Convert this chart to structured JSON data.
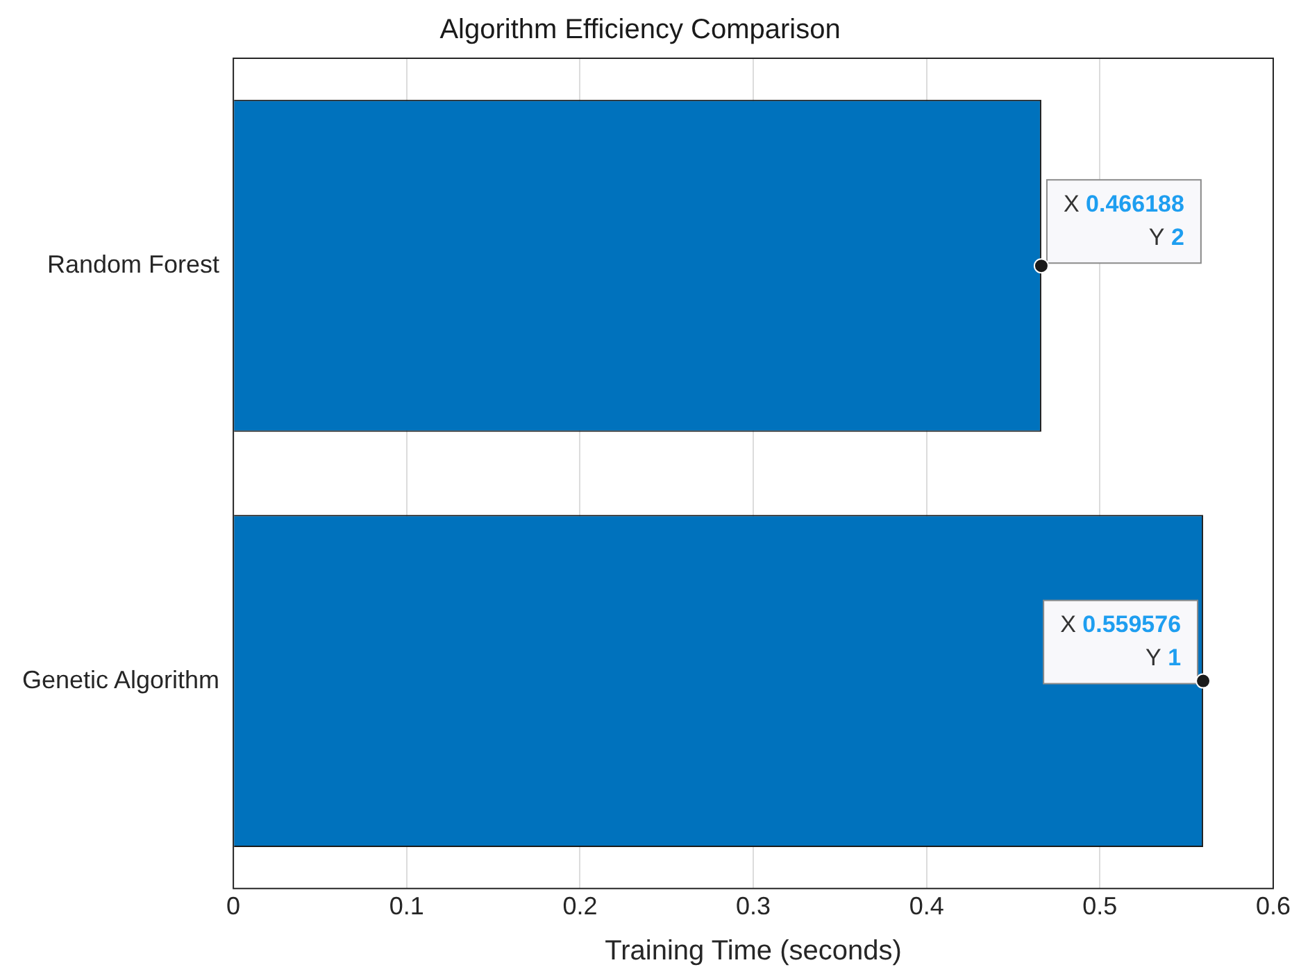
{
  "chart_data": {
    "type": "bar",
    "orientation": "horizontal",
    "title": "Algorithm Efficiency Comparison",
    "xlabel": "Training Time (seconds)",
    "categories": [
      "Random Forest",
      "Genetic Algorithm"
    ],
    "values": [
      0.466188,
      0.559576
    ],
    "color": "#0072bd",
    "xlim": [
      0,
      0.6
    ],
    "xticks": [
      0,
      0.1,
      0.2,
      0.3,
      0.4,
      0.5,
      0.6
    ],
    "grid": "x",
    "annotations": [
      {
        "text": "X 0.466188\nY 2",
        "x": 0.466188,
        "y": "Random Forest"
      },
      {
        "text": "X 0.559576\nY 1",
        "x": 0.559576,
        "y": "Genetic Algorithm"
      }
    ]
  }
}
